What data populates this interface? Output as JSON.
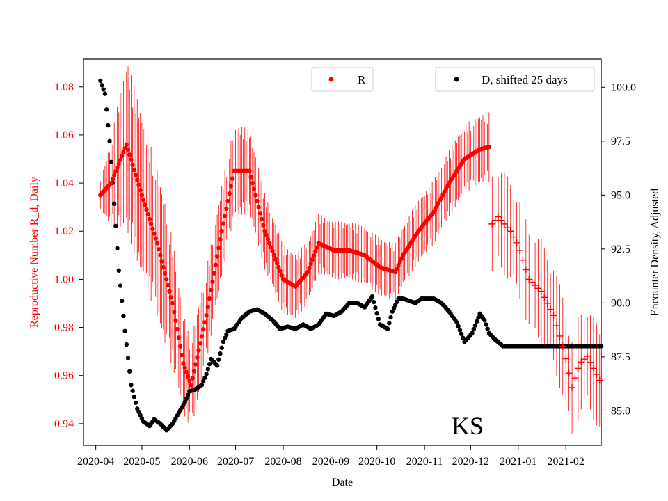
{
  "chart_data": {
    "type": "scatter",
    "title": "",
    "xlabel": "Date",
    "ylabel_left": "Reproductive Number R_d, Daily",
    "ylabel_right": "Encounter Density, Adjusted",
    "annotation": "KS",
    "x_ticks": [
      "2020-04",
      "2020-05",
      "2020-06",
      "2020-07",
      "2020-08",
      "2020-09",
      "2020-10",
      "2020-11",
      "2020-12",
      "2021-01",
      "2021-02"
    ],
    "y_left_ticks": [
      "0.94",
      "0.96",
      "0.98",
      "1.00",
      "1.02",
      "1.04",
      "1.06",
      "1.08"
    ],
    "y_right_ticks": [
      "85.0",
      "87.5",
      "90.0",
      "92.5",
      "95.0",
      "97.5",
      "100.0"
    ],
    "ylim_left": [
      0.931,
      1.0915
    ],
    "ylim_right": [
      83.4,
      101.3
    ],
    "x_range_days": [
      -8,
      329
    ],
    "colors": {
      "r_series": "#ff0000",
      "d_series": "#000000",
      "left_axis": "#ff0000"
    },
    "legend": [
      {
        "label": "R",
        "color": "#ff0000",
        "position": "top-center"
      },
      {
        "label": "D, shifted 25 days",
        "color": "#000000",
        "position": "top-right"
      }
    ],
    "series": [
      {
        "name": "R",
        "axis": "left",
        "marker": "dot",
        "knots_day": [
          3,
          10,
          20,
          30,
          40,
          50,
          57,
          62,
          72,
          82,
          90,
          100,
          110,
          122,
          130,
          138,
          145,
          155,
          165,
          175,
          185,
          195,
          200,
          210,
          220,
          230,
          240,
          250,
          256
        ],
        "knots_value": [
          1.035,
          1.04,
          1.056,
          1.035,
          1.015,
          0.99,
          0.965,
          0.956,
          0.985,
          1.02,
          1.045,
          1.045,
          1.02,
          1.0,
          0.997,
          1.003,
          1.015,
          1.012,
          1.012,
          1.01,
          1.005,
          1.003,
          1.01,
          1.02,
          1.028,
          1.04,
          1.05,
          1.054,
          1.055
        ],
        "error_knots_day": [
          3,
          20,
          45,
          60,
          90,
          120,
          150,
          190,
          240,
          256
        ],
        "error_knots_value": [
          0.005,
          0.03,
          0.025,
          0.016,
          0.016,
          0.012,
          0.01,
          0.01,
          0.012,
          0.012
        ]
      },
      {
        "name": "R (sparse tail)",
        "axis": "left",
        "marker": "plus",
        "knots_day": [
          258,
          262,
          270,
          275,
          282,
          290,
          298,
          305,
          310,
          315,
          320,
          328
        ],
        "knots_value": [
          1.023,
          1.026,
          1.02,
          1.014,
          1.0,
          0.995,
          0.985,
          0.97,
          0.955,
          0.965,
          0.968,
          0.958
        ],
        "error_value": 0.018
      },
      {
        "name": "D, shifted 25 days",
        "axis": "right",
        "marker": "dot",
        "knots_day": [
          3,
          6,
          9,
          12,
          15,
          19,
          23,
          27,
          31,
          35,
          38,
          42,
          46,
          50,
          54,
          58,
          61,
          65,
          69,
          72,
          75,
          79,
          83,
          86,
          90,
          95,
          100,
          105,
          110,
          115,
          120,
          125,
          130,
          135,
          140,
          145,
          150,
          155,
          160,
          165,
          170,
          175,
          180,
          185,
          190,
          193,
          197,
          200,
          204,
          208,
          212,
          216,
          220,
          225,
          230,
          235,
          240,
          245,
          250,
          253,
          256,
          260,
          265,
          269,
          273,
          276,
          280,
          285,
          290,
          295,
          300,
          305,
          310,
          315,
          320,
          325,
          329
        ],
        "knots_value": [
          100.3,
          99.7,
          97.5,
          94.6,
          91.5,
          88.7,
          86.2,
          85.1,
          84.5,
          84.3,
          84.6,
          84.4,
          84.1,
          84.4,
          84.9,
          85.4,
          85.9,
          86.0,
          86.2,
          86.7,
          87.4,
          87.1,
          88.2,
          88.7,
          88.8,
          89.3,
          89.6,
          89.7,
          89.5,
          89.2,
          88.8,
          88.9,
          88.8,
          89.0,
          88.8,
          89.0,
          89.5,
          89.4,
          89.6,
          90.0,
          90.0,
          89.8,
          90.3,
          89.0,
          88.8,
          89.6,
          90.2,
          90.2,
          90.1,
          90.0,
          90.2,
          90.2,
          90.2,
          90.0,
          89.6,
          89.1,
          88.2,
          88.6,
          89.5,
          89.2,
          88.6,
          88.3,
          88.0,
          88.0,
          88.0,
          88.0,
          88.0,
          88.0,
          88.0,
          88.0,
          88.0,
          88.0,
          88.0,
          88.0,
          88.0,
          88.0,
          88.0
        ]
      }
    ]
  }
}
